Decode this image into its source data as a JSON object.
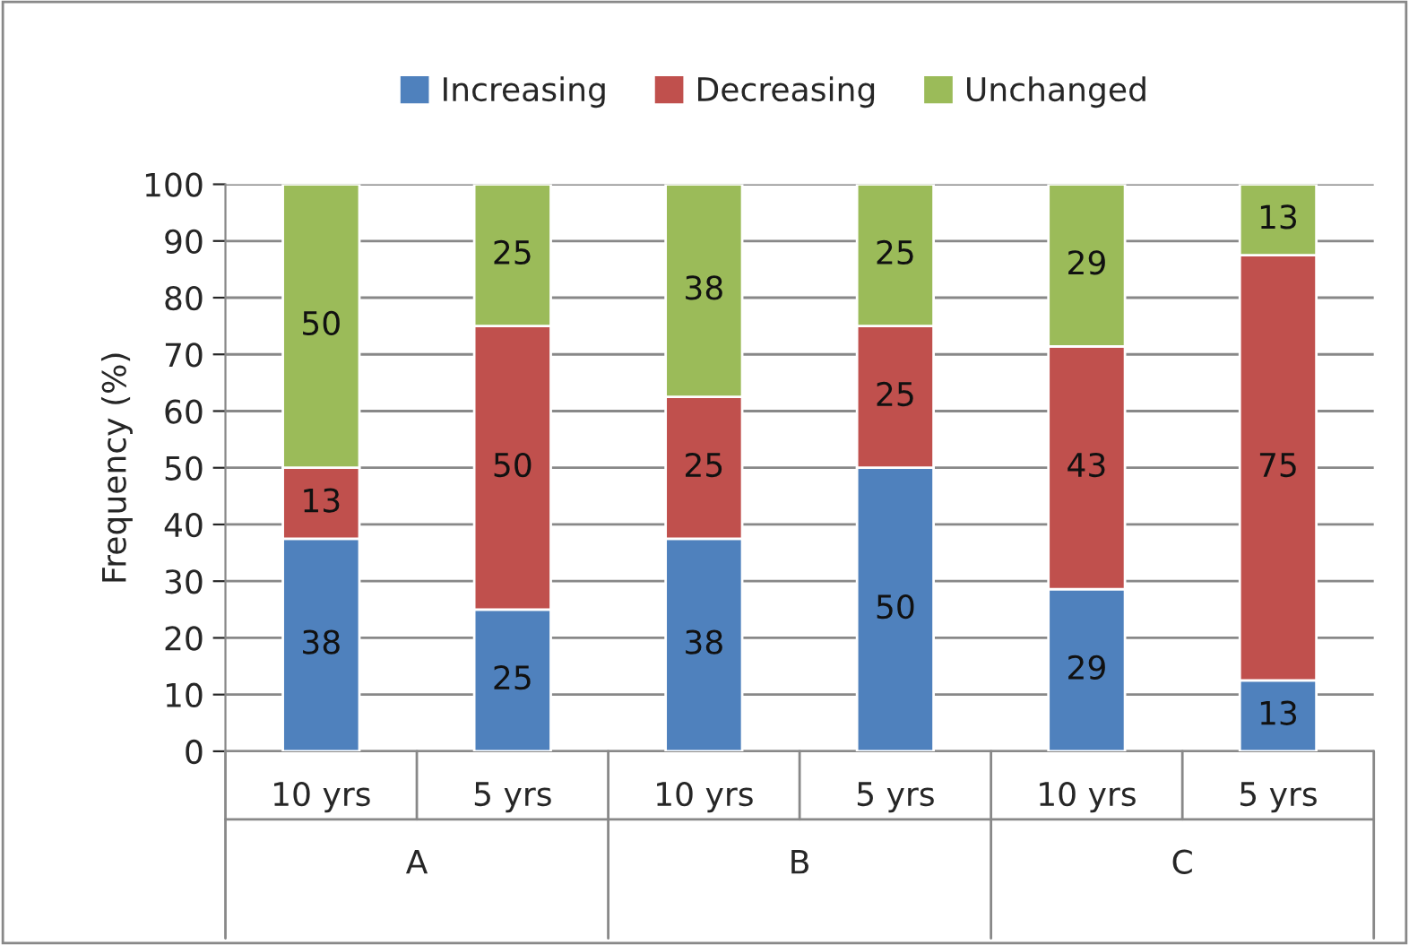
{
  "chart_data": {
    "type": "bar",
    "stacked": true,
    "ylabel": "Frequency (%)",
    "categories": [
      "10 yrs",
      "5 yrs",
      "10 yrs",
      "5 yrs",
      "10 yrs",
      "5 yrs"
    ],
    "annotations": [
      "A",
      "B",
      "C"
    ],
    "series": [
      {
        "name": "Increasing",
        "color": "#4f81bd",
        "values": [
          37.5,
          25,
          37.5,
          50,
          28.6,
          12.5
        ],
        "value_labels": [
          "38",
          "25",
          "38",
          "50",
          "29",
          "13"
        ]
      },
      {
        "name": "Decreasing",
        "color": "#c0504d",
        "values": [
          12.5,
          50,
          25,
          25,
          42.8,
          75
        ],
        "value_labels": [
          "13",
          "50",
          "25",
          "25",
          "43",
          "75"
        ]
      },
      {
        "name": "Unchanged",
        "color": "#9bbb59",
        "values": [
          50,
          25,
          37.5,
          25,
          28.6,
          12.5
        ],
        "value_labels": [
          "50",
          "25",
          "38",
          "25",
          "29",
          "13"
        ]
      }
    ],
    "ylim": [
      0,
      100
    ],
    "yticks": [
      0,
      10,
      20,
      30,
      40,
      50,
      60,
      70,
      80,
      90,
      100
    ],
    "grid": "y",
    "legend": "top"
  }
}
